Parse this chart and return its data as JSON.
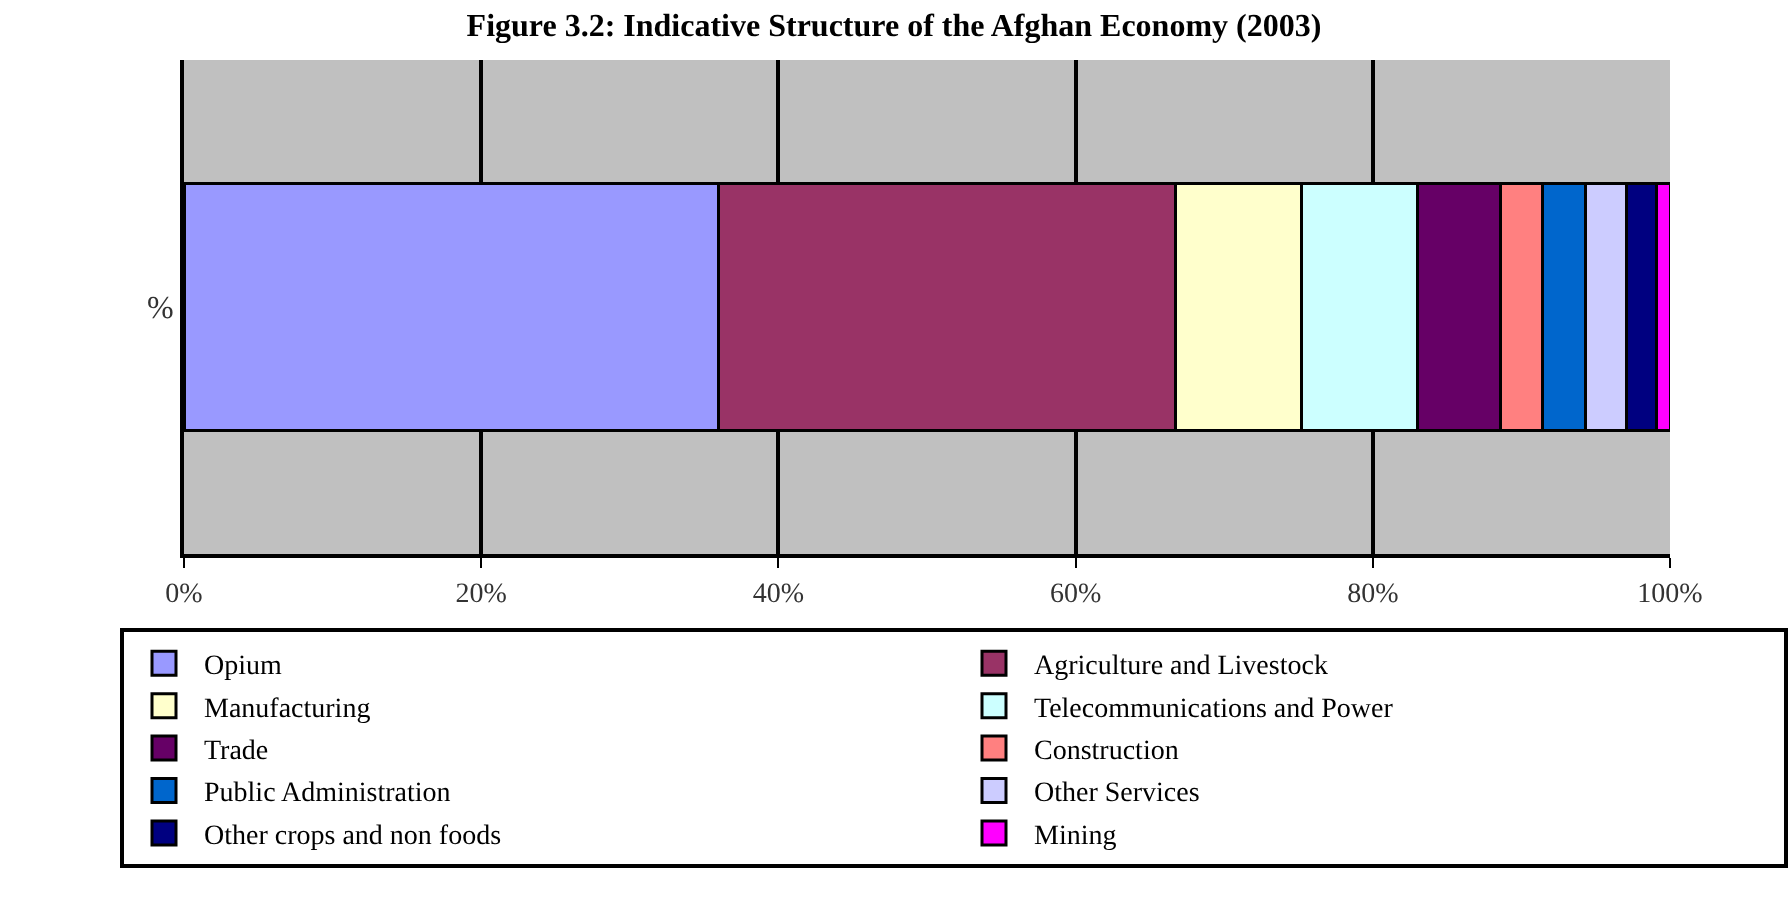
{
  "chart_data": {
    "type": "bar",
    "title": "Figure 3.2: Indicative Structure of the Afghan Economy (2003)",
    "orientation": "horizontal",
    "stacked": true,
    "categories": [
      "%"
    ],
    "series": [
      {
        "name": "Opium",
        "color": "#9999ff",
        "values": [
          36
        ]
      },
      {
        "name": "Agriculture and Livestock",
        "color": "#993366",
        "values": [
          30.7
        ]
      },
      {
        "name": "Manufacturing",
        "color": "#ffffcc",
        "values": [
          8.5
        ]
      },
      {
        "name": "Telecommunications and Power",
        "color": "#ccffff",
        "values": [
          7.8
        ]
      },
      {
        "name": "Trade",
        "color": "#660066",
        "values": [
          5.6
        ]
      },
      {
        "name": "Construction",
        "color": "#ff8080",
        "values": [
          2.8
        ]
      },
      {
        "name": "Public Administration",
        "color": "#0066cc",
        "values": [
          2.9
        ]
      },
      {
        "name": "Other Services",
        "color": "#ccccff",
        "values": [
          2.8
        ]
      },
      {
        "name": "Other crops and non foods",
        "color": "#000080",
        "values": [
          2.0
        ]
      },
      {
        "name": "Mining",
        "color": "#ff00ff",
        "values": [
          0.9
        ]
      }
    ],
    "xlim": [
      0,
      100
    ],
    "xticks": [
      {
        "value": 0,
        "label": "0%"
      },
      {
        "value": 20,
        "label": "20%"
      },
      {
        "value": 40,
        "label": "40%"
      },
      {
        "value": 60,
        "label": "60%"
      },
      {
        "value": 80,
        "label": "80%"
      },
      {
        "value": 100,
        "label": "100%"
      }
    ],
    "grid": "x",
    "legend": "bottom"
  }
}
